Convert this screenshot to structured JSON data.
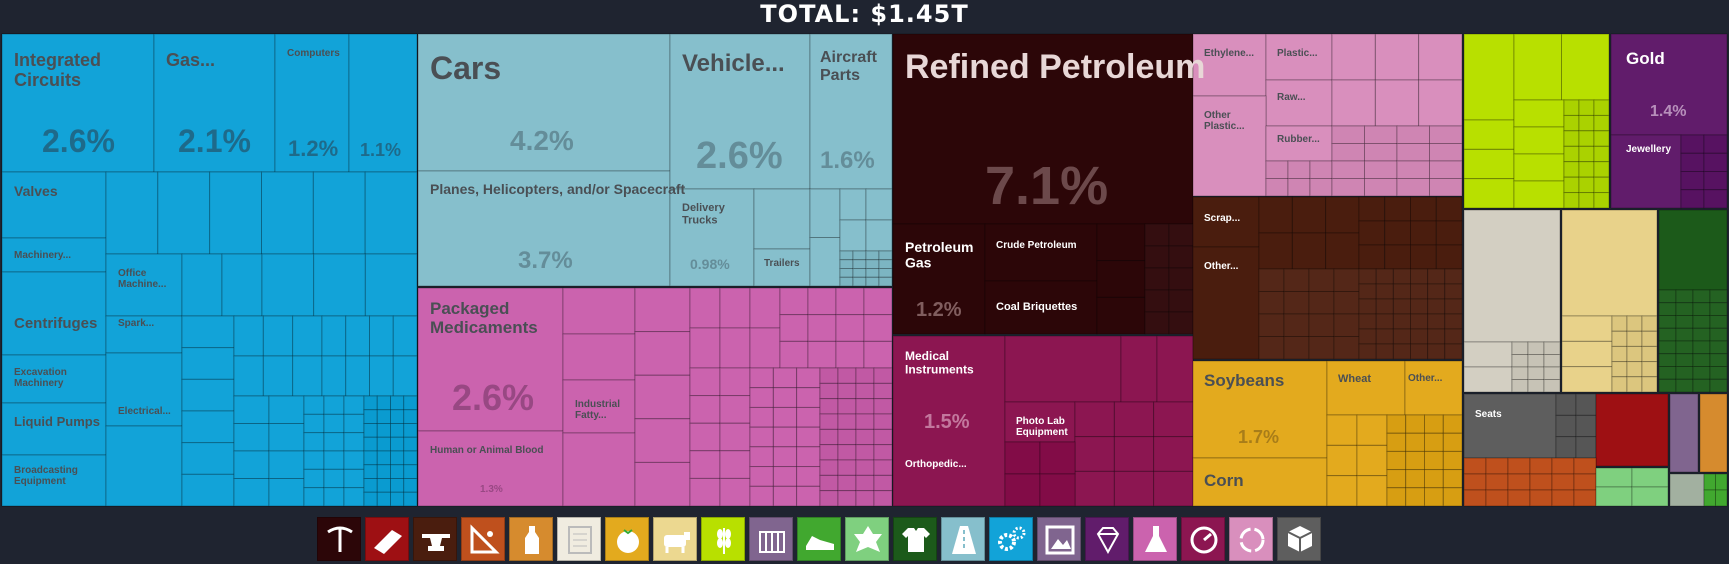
{
  "header": {
    "total_label": "TOTAL: $1.45T"
  },
  "chart_data": {
    "type": "treemap",
    "title": "TOTAL: $1.45T",
    "colors": {
      "machines": "#12a3d8",
      "transport": "#86bfcc",
      "chemicals": "#cb63ae",
      "minerals": "#2c0608",
      "instruments": "#8c1651",
      "plastics": "#d98fbd",
      "animal_hides": "#4a1d0e",
      "vegetable": "#e3aa1e",
      "foodstuffs": "#b8e000",
      "precious_metals": "#611c6b",
      "stone": "#d3cfc2",
      "paper": "#e8d28a",
      "textiles": "#1c5a1a",
      "misc": "#5e5e5e",
      "metals": "#9e1013",
      "weapons": "#80658f",
      "animal_products": "#d68b2e",
      "wood": "#bf501d",
      "footwear": "#7fd07f",
      "art": "#a2b0a0",
      "vegetable_oils": "#41a82f"
    },
    "labeled_tiles": [
      {
        "name": "Integrated Circuits",
        "value_pct": "2.6%",
        "group": "machines"
      },
      {
        "name": "Gas...",
        "value_pct": "2.1%",
        "group": "machines"
      },
      {
        "name": "Computers",
        "value_pct": "1.2%",
        "group": "machines"
      },
      {
        "name": "",
        "value_pct": "1.1%",
        "group": "machines"
      },
      {
        "name": "Valves",
        "value_pct": "",
        "group": "machines"
      },
      {
        "name": "Machinery...",
        "value_pct": "",
        "group": "machines"
      },
      {
        "name": "Office Machine...",
        "value_pct": "",
        "group": "machines"
      },
      {
        "name": "Centrifuges",
        "value_pct": "",
        "group": "machines"
      },
      {
        "name": "Spark...",
        "value_pct": "",
        "group": "machines"
      },
      {
        "name": "Excavation Machinery",
        "value_pct": "",
        "group": "machines"
      },
      {
        "name": "Electrical...",
        "value_pct": "",
        "group": "machines"
      },
      {
        "name": "Liquid Pumps",
        "value_pct": "",
        "group": "machines"
      },
      {
        "name": "Broadcasting Equipment",
        "value_pct": "",
        "group": "machines"
      },
      {
        "name": "Cars",
        "value_pct": "4.2%",
        "group": "transport"
      },
      {
        "name": "Vehicle...",
        "value_pct": "2.6%",
        "group": "transport"
      },
      {
        "name": "Aircraft Parts",
        "value_pct": "1.6%",
        "group": "transport"
      },
      {
        "name": "Planes, Helicopters, and/or Spacecraft",
        "value_pct": "3.7%",
        "group": "transport"
      },
      {
        "name": "Delivery Trucks",
        "value_pct": "0.98%",
        "group": "transport"
      },
      {
        "name": "Trailers",
        "value_pct": "",
        "group": "transport"
      },
      {
        "name": "Packaged Medicaments",
        "value_pct": "2.6%",
        "group": "chemicals"
      },
      {
        "name": "Industrial Fatty...",
        "value_pct": "",
        "group": "chemicals"
      },
      {
        "name": "Human or Animal Blood",
        "value_pct": "1.3%",
        "group": "chemicals"
      },
      {
        "name": "Refined Petroleum",
        "value_pct": "7.1%",
        "group": "minerals"
      },
      {
        "name": "Petroleum Gas",
        "value_pct": "1.2%",
        "group": "minerals"
      },
      {
        "name": "Crude Petroleum",
        "value_pct": "",
        "group": "minerals"
      },
      {
        "name": "Coal Briquettes",
        "value_pct": "",
        "group": "minerals"
      },
      {
        "name": "Medical Instruments",
        "value_pct": "1.5%",
        "group": "instruments"
      },
      {
        "name": "Photo Lab Equipment",
        "value_pct": "",
        "group": "instruments"
      },
      {
        "name": "Orthopedic...",
        "value_pct": "",
        "group": "instruments"
      },
      {
        "name": "Ethylene...",
        "value_pct": "",
        "group": "plastics"
      },
      {
        "name": "Plastic...",
        "value_pct": "",
        "group": "plastics"
      },
      {
        "name": "Raw...",
        "value_pct": "",
        "group": "plastics"
      },
      {
        "name": "Other Plastic...",
        "value_pct": "",
        "group": "plastics"
      },
      {
        "name": "Rubber...",
        "value_pct": "",
        "group": "plastics"
      },
      {
        "name": "Scrap...",
        "value_pct": "",
        "group": "animal_hides"
      },
      {
        "name": "Other...",
        "value_pct": "",
        "group": "animal_hides"
      },
      {
        "name": "Soybeans",
        "value_pct": "1.7%",
        "group": "vegetable"
      },
      {
        "name": "Wheat",
        "value_pct": "",
        "group": "vegetable"
      },
      {
        "name": "Other...",
        "value_pct": "",
        "group": "vegetable"
      },
      {
        "name": "Corn",
        "value_pct": "",
        "group": "vegetable"
      },
      {
        "name": "Gold",
        "value_pct": "1.4%",
        "group": "precious_metals"
      },
      {
        "name": "Jewellery",
        "value_pct": "",
        "group": "precious_metals"
      },
      {
        "name": "Seats",
        "value_pct": "",
        "group": "misc"
      }
    ],
    "legend_icons": [
      {
        "name": "pickaxe-icon",
        "color": "#2c0608"
      },
      {
        "name": "metal-bar-icon",
        "color": "#9e1013"
      },
      {
        "name": "anvil-icon",
        "color": "#4a1d0e"
      },
      {
        "name": "stone-icon",
        "color": "#bf501d"
      },
      {
        "name": "bottle-icon",
        "color": "#d68b2e"
      },
      {
        "name": "scroll-icon",
        "color": "#f0ece0"
      },
      {
        "name": "tomato-icon",
        "color": "#e3aa1e"
      },
      {
        "name": "cow-icon",
        "color": "#ecd890"
      },
      {
        "name": "wheat-icon",
        "color": "#b8e000"
      },
      {
        "name": "weapon-icon",
        "color": "#80658f"
      },
      {
        "name": "shoe-icon",
        "color": "#41a82f"
      },
      {
        "name": "hide-icon",
        "color": "#7fd07f"
      },
      {
        "name": "shirt-icon",
        "color": "#1c5a1a"
      },
      {
        "name": "road-icon",
        "color": "#86bfcc"
      },
      {
        "name": "gears-icon",
        "color": "#12a3d8"
      },
      {
        "name": "picture-icon",
        "color": "#80658f"
      },
      {
        "name": "diamond-icon",
        "color": "#611c6b"
      },
      {
        "name": "flask-icon",
        "color": "#cb63ae"
      },
      {
        "name": "gauge-icon",
        "color": "#8c1651"
      },
      {
        "name": "recycle-icon",
        "color": "#d98fbd"
      },
      {
        "name": "boxes-icon",
        "color": "#5e5e5e"
      }
    ]
  }
}
